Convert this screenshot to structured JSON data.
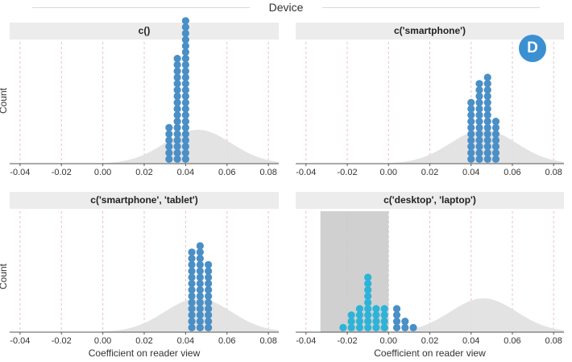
{
  "figure": {
    "title": "Device",
    "badge": "D",
    "xlabel": "Coefficient on reader view",
    "ylabel": "Count",
    "colors": {
      "dot": "#4a8fc6",
      "dot_highlight": "#2db3d8",
      "density": "#e0e0e0",
      "shade": "#c8c8c8",
      "strip": "#ececec",
      "badge": "#3b90d2",
      "grid": "#e6c3c3"
    }
  },
  "chart_data": [
    {
      "type": "scatter",
      "title": "c()",
      "x_ticks": [
        "-0.04",
        "-0.02",
        "0.00",
        "0.02",
        "0.04",
        "0.06",
        "0.08"
      ],
      "xlim": [
        -0.045,
        0.085
      ],
      "ylabel": "Count",
      "xlabel": "",
      "grid": true,
      "shaded_region": null,
      "dot_columns": [
        {
          "x": 0.032,
          "count": 6
        },
        {
          "x": 0.036,
          "count": 17
        },
        {
          "x": 0.04,
          "count": 23
        }
      ],
      "density": {
        "mean": 0.046,
        "sd": 0.016
      }
    },
    {
      "type": "scatter",
      "title": "c('smartphone')",
      "x_ticks": [
        "-0.04",
        "-0.02",
        "0.00",
        "0.02",
        "0.04",
        "0.06",
        "0.08"
      ],
      "xlim": [
        -0.045,
        0.085
      ],
      "ylabel": "",
      "xlabel": "",
      "grid": true,
      "shaded_region": null,
      "dot_columns": [
        {
          "x": 0.04,
          "count": 10
        },
        {
          "x": 0.044,
          "count": 13
        },
        {
          "x": 0.048,
          "count": 14
        },
        {
          "x": 0.052,
          "count": 7
        }
      ],
      "density": {
        "mean": 0.046,
        "sd": 0.016
      }
    },
    {
      "type": "scatter",
      "title": "c('smartphone', 'tablet')",
      "x_ticks": [
        "-0.04",
        "-0.02",
        "0.00",
        "0.02",
        "0.04",
        "0.06",
        "0.08"
      ],
      "xlim": [
        -0.045,
        0.085
      ],
      "ylabel": "Count",
      "xlabel": "Coefficient on reader view",
      "grid": true,
      "shaded_region": null,
      "dot_columns": [
        {
          "x": 0.043,
          "count": 13
        },
        {
          "x": 0.047,
          "count": 14
        },
        {
          "x": 0.051,
          "count": 11
        }
      ],
      "density": {
        "mean": 0.046,
        "sd": 0.016
      }
    },
    {
      "type": "scatter",
      "title": "c('desktop', 'laptop')",
      "x_ticks": [
        "-0.04",
        "-0.02",
        "0.00",
        "0.02",
        "0.04",
        "0.06",
        "0.08"
      ],
      "xlim": [
        -0.045,
        0.085
      ],
      "ylabel": "",
      "xlabel": "Coefficient on reader view",
      "grid": true,
      "shaded_region": [
        -0.033,
        0.0
      ],
      "dot_columns": [
        {
          "x": -0.022,
          "count": 1
        },
        {
          "x": -0.018,
          "count": 3
        },
        {
          "x": -0.014,
          "count": 4
        },
        {
          "x": -0.01,
          "count": 9
        },
        {
          "x": -0.006,
          "count": 4
        },
        {
          "x": -0.002,
          "count": 4
        },
        {
          "x": 0.004,
          "count": 4
        },
        {
          "x": 0.008,
          "count": 2
        },
        {
          "x": 0.012,
          "count": 1
        }
      ],
      "density": {
        "mean": 0.046,
        "sd": 0.016
      }
    }
  ]
}
